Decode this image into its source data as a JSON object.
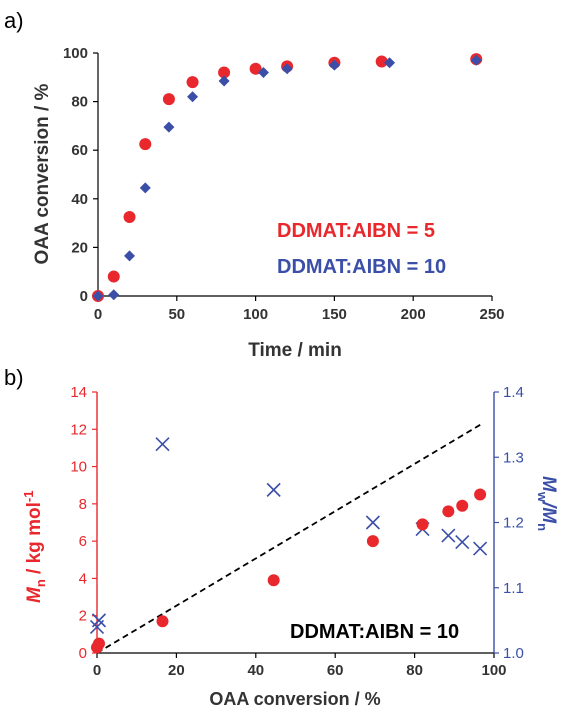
{
  "colors": {
    "red": "#e8282d",
    "blue": "#3b4fa8",
    "axis": "#000000",
    "dash": "#000000"
  },
  "chart_data": [
    {
      "panel_label": "a)",
      "type": "scatter",
      "xlabel": "Time / min",
      "ylabel": "OAA conversion / %",
      "xlim": [
        0,
        250
      ],
      "ylim": [
        0,
        100
      ],
      "xticks": [
        0,
        50,
        100,
        150,
        200,
        250
      ],
      "yticks": [
        0,
        20,
        40,
        60,
        80,
        100
      ],
      "grid": false,
      "series": [
        {
          "name": "DDMAT:AIBN = 5",
          "marker": "circle",
          "color": "#e8282d",
          "x": [
            0,
            10,
            20,
            30,
            45,
            60,
            80,
            100,
            120,
            150,
            180,
            240
          ],
          "y": [
            0,
            8,
            32.5,
            62.5,
            81,
            88,
            92,
            93.5,
            94.5,
            96,
            96.5,
            97.5
          ]
        },
        {
          "name": "DDMAT:AIBN = 10",
          "marker": "diamond",
          "color": "#3b4fa8",
          "x": [
            0,
            10,
            20,
            30,
            45,
            60,
            80,
            105,
            120,
            150,
            185,
            240
          ],
          "y": [
            0,
            0.5,
            16.5,
            44.5,
            69.5,
            82,
            88.5,
            92,
            93.5,
            95,
            96,
            97
          ]
        }
      ]
    },
    {
      "panel_label": "b)",
      "type": "scatter",
      "xlabel": "OAA conversion / %",
      "ylabel_left": {
        "main": "M",
        "sub": "n",
        "tail": " / kg mol",
        "sup": "-1"
      },
      "ylabel_right": {
        "a": "M",
        "a_sub": "w",
        "b": "/M",
        "b_sub": "n"
      },
      "xlim": [
        0,
        100
      ],
      "ylim_left": [
        0,
        14
      ],
      "ylim_right": [
        1.0,
        1.4
      ],
      "xticks": [
        0,
        20,
        40,
        60,
        80,
        100
      ],
      "yticks_left": [
        0,
        2,
        4,
        6,
        8,
        10,
        12,
        14
      ],
      "yticks_right": [
        "1.0",
        "1.1",
        "1.2",
        "1.3",
        "1.4"
      ],
      "annotation": "DDMAT:AIBN = 10",
      "grid": false,
      "theory_line": {
        "x": [
          0,
          97
        ],
        "y": [
          0,
          12.3
        ]
      },
      "mn_series": {
        "axis": "left",
        "marker": "circle",
        "color": "#e8282d",
        "x": [
          0,
          0.5,
          16.5,
          44.5,
          69.5,
          82,
          88.5,
          92,
          96.5
        ],
        "y": [
          0.3,
          0.5,
          1.7,
          3.9,
          6.0,
          6.9,
          7.6,
          7.9,
          8.5
        ]
      },
      "dispersity_series": {
        "axis": "right",
        "marker": "cross",
        "color": "#3b4fa8",
        "x": [
          0,
          0.5,
          16.5,
          44.5,
          69.5,
          82,
          88.5,
          92,
          96.5
        ],
        "y": [
          1.04,
          1.05,
          1.32,
          1.25,
          1.2,
          1.19,
          1.18,
          1.17,
          1.16
        ]
      }
    }
  ]
}
